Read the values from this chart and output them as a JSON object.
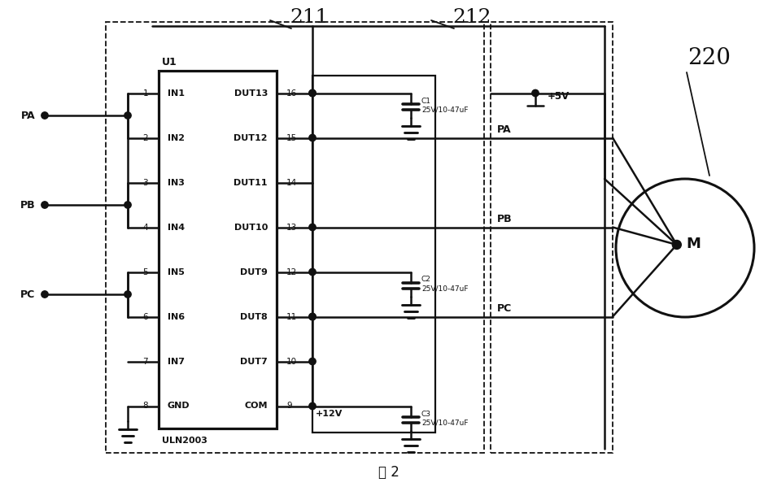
{
  "bg": "#ffffff",
  "lc": "#111111",
  "title": "图 2",
  "ic_label": "U1",
  "ic_sublabel": "ULN2003",
  "pins_left": [
    "IN1",
    "IN2",
    "IN3",
    "IN4",
    "IN5",
    "IN6",
    "IN7",
    "GND"
  ],
  "pins_right": [
    "DUT13",
    "DUT12",
    "DUT11",
    "DUT10",
    "DUT9",
    "DUT8",
    "DUT7",
    "COM"
  ],
  "nums_left": [
    "1",
    "2",
    "3",
    "4",
    "5",
    "6",
    "7",
    "8"
  ],
  "nums_right": [
    "16",
    "15",
    "14",
    "13",
    "12",
    "11",
    "10",
    "9"
  ],
  "label_211": "211",
  "label_212": "212",
  "label_220": "220",
  "cap_labels": [
    "C1\n25V/10-47uF",
    "C2\n25V/10-47uF",
    "C3\n25V/10-47uF"
  ],
  "motor_label": "M",
  "plus5v": "+5V",
  "plus12v": "+12V",
  "pa_label": "PA",
  "pb_label": "PB",
  "pc_label": "PC"
}
